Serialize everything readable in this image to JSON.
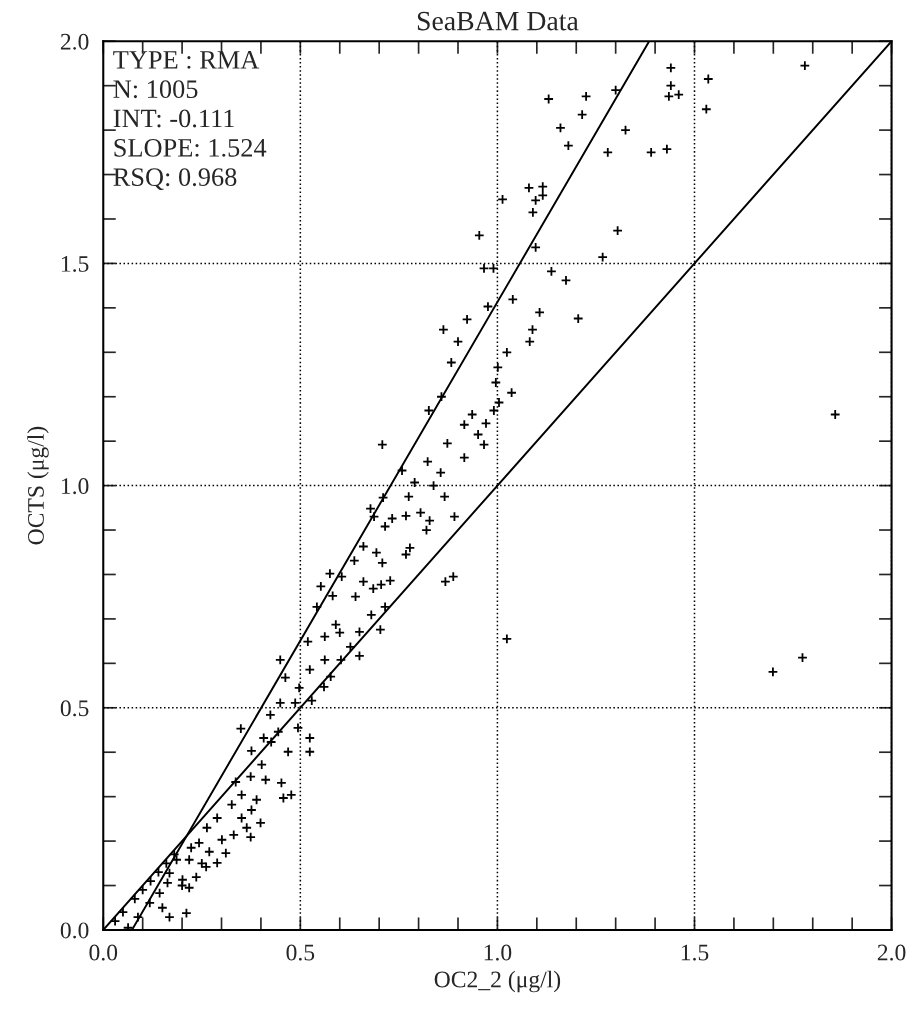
{
  "chart_data": {
    "type": "scatter",
    "title": "SeaBAM Data",
    "xlabel": "OC2_2 (μg/l)",
    "ylabel": "OCTS (μg/l)",
    "annotations": [
      "TYPE : RMA",
      "N: 1005",
      "INT: -0.111",
      "SLOPE: 1.524",
      "RSQ: 0.968"
    ],
    "xlim": [
      0,
      2
    ],
    "ylim": [
      0,
      2
    ],
    "xticks": [
      {
        "value": 0,
        "label": "0.0"
      },
      {
        "value": 0.1,
        "label": null
      },
      {
        "value": 0.2,
        "label": null
      },
      {
        "value": 0.3,
        "label": null
      },
      {
        "value": 0.4,
        "label": null
      },
      {
        "value": 0.5,
        "label": "0.5"
      },
      {
        "value": 0.6,
        "label": null
      },
      {
        "value": 0.7,
        "label": null
      },
      {
        "value": 0.8,
        "label": null
      },
      {
        "value": 0.9,
        "label": null
      },
      {
        "value": 1,
        "label": "1.0"
      },
      {
        "value": 1.1,
        "label": null
      },
      {
        "value": 1.2,
        "label": null
      },
      {
        "value": 1.3,
        "label": null
      },
      {
        "value": 1.4,
        "label": null
      },
      {
        "value": 1.5,
        "label": "1.5"
      },
      {
        "value": 1.6,
        "label": null
      },
      {
        "value": 1.7,
        "label": null
      },
      {
        "value": 1.8,
        "label": null
      },
      {
        "value": 1.9,
        "label": null
      },
      {
        "value": 2,
        "label": "2.0"
      }
    ],
    "yticks": [
      {
        "value": 0,
        "label": "0.0"
      },
      {
        "value": 0.1,
        "label": null
      },
      {
        "value": 0.2,
        "label": null
      },
      {
        "value": 0.3,
        "label": null
      },
      {
        "value": 0.4,
        "label": null
      },
      {
        "value": 0.5,
        "label": "0.5"
      },
      {
        "value": 0.6,
        "label": null
      },
      {
        "value": 0.7,
        "label": null
      },
      {
        "value": 0.8,
        "label": null
      },
      {
        "value": 0.9,
        "label": null
      },
      {
        "value": 1,
        "label": "1.0"
      },
      {
        "value": 1.1,
        "label": null
      },
      {
        "value": 1.2,
        "label": null
      },
      {
        "value": 1.3,
        "label": null
      },
      {
        "value": 1.4,
        "label": null
      },
      {
        "value": 1.5,
        "label": "1.5"
      },
      {
        "value": 1.6,
        "label": null
      },
      {
        "value": 1.7,
        "label": null
      },
      {
        "value": 1.8,
        "label": null
      },
      {
        "value": 1.9,
        "label": null
      },
      {
        "value": 2,
        "label": "2.0"
      }
    ],
    "grid": true,
    "legend": false,
    "series": [
      {
        "color": "#000000",
        "marker": "cross",
        "x": [
          1.13,
          1.225,
          1.3,
          1.215,
          1.16,
          1.18,
          1.325,
          1.28,
          1.39,
          1.43,
          1.44,
          1.44,
          1.435,
          1.46,
          1.535,
          1.53,
          1.78,
          1.08,
          1.115,
          1.097,
          1.115,
          1.09,
          1.013,
          0.954,
          1.305,
          1.267,
          0.99,
          0.966,
          1.137,
          1.174,
          1.097,
          0.976,
          1.039,
          0.923,
          1.107,
          1.205,
          0.863,
          1.089,
          0.9,
          1.082,
          1.024,
          0.883,
          1.001,
          0.996,
          1.036,
          0.858,
          1.004,
          0.936,
          0.826,
          0.991,
          0.916,
          0.971,
          0.951,
          0.873,
          0.966,
          1.857,
          0.708,
          0.916,
          0.823,
          0.856,
          0.758,
          0.79,
          0.838,
          0.71,
          0.775,
          0.866,
          0.678,
          0.687,
          0.733,
          0.768,
          0.805,
          0.828,
          0.891,
          0.82,
          0.715,
          0.778,
          0.768,
          0.693,
          0.708,
          0.66,
          0.637,
          0.728,
          0.705,
          0.685,
          0.66,
          0.715,
          0.68,
          0.64,
          0.605,
          0.575,
          0.552,
          0.582,
          0.542,
          0.59,
          0.6,
          0.65,
          0.627,
          0.562,
          0.519,
          0.562,
          0.603,
          0.65,
          0.524,
          0.577,
          0.56,
          0.497,
          0.529,
          0.449,
          0.462,
          0.487,
          0.449,
          0.424,
          0.444,
          0.494,
          0.407,
          0.426,
          0.349,
          0.469,
          0.524,
          0.524,
          0.376,
          0.402,
          0.374,
          0.412,
          0.336,
          0.452,
          0.477,
          0.457,
          0.351,
          0.389,
          0.326,
          0.376,
          0.351,
          0.289,
          0.399,
          0.364,
          0.331,
          0.374,
          0.263,
          0.301,
          0.243,
          0.223,
          0.269,
          0.311,
          0.289,
          0.261,
          0.218,
          0.186,
          0.168,
          0.236,
          0.201,
          0.163,
          0.143,
          0.218,
          0.118,
          0.088,
          0.063,
          0.211,
          0.168,
          0.703,
          0.868,
          0.888,
          1.024,
          1.699,
          1.774,
          0.03,
          0.05,
          0.08,
          0.1,
          0.12,
          0.14,
          0.16,
          0.18,
          0.15,
          0.2,
          0.25
        ],
        "values": [
          1.87,
          1.876,
          1.89,
          1.835,
          1.805,
          1.765,
          1.8,
          1.75,
          1.75,
          1.757,
          1.94,
          1.9,
          1.876,
          1.88,
          1.915,
          1.847,
          1.945,
          1.67,
          1.673,
          1.642,
          1.653,
          1.615,
          1.644,
          1.563,
          1.574,
          1.514,
          1.489,
          1.489,
          1.482,
          1.462,
          1.536,
          1.403,
          1.419,
          1.374,
          1.39,
          1.376,
          1.351,
          1.351,
          1.324,
          1.324,
          1.3,
          1.277,
          1.266,
          1.232,
          1.209,
          1.2,
          1.187,
          1.16,
          1.169,
          1.169,
          1.137,
          1.14,
          1.115,
          1.095,
          1.092,
          1.16,
          1.092,
          1.063,
          1.054,
          1.029,
          1.034,
          1.007,
          1.0,
          0.973,
          0.975,
          0.975,
          0.948,
          0.93,
          0.926,
          0.932,
          0.939,
          0.921,
          0.93,
          0.9,
          0.908,
          0.86,
          0.845,
          0.849,
          0.826,
          0.863,
          0.831,
          0.786,
          0.777,
          0.768,
          0.784,
          0.727,
          0.709,
          0.75,
          0.795,
          0.802,
          0.773,
          0.752,
          0.727,
          0.687,
          0.669,
          0.671,
          0.637,
          0.66,
          0.649,
          0.608,
          0.608,
          0.617,
          0.586,
          0.57,
          0.547,
          0.545,
          0.516,
          0.608,
          0.568,
          0.511,
          0.511,
          0.484,
          0.446,
          0.455,
          0.432,
          0.423,
          0.453,
          0.401,
          0.432,
          0.401,
          0.403,
          0.372,
          0.345,
          0.338,
          0.333,
          0.331,
          0.304,
          0.297,
          0.304,
          0.293,
          0.282,
          0.27,
          0.252,
          0.252,
          0.241,
          0.23,
          0.214,
          0.209,
          0.23,
          0.203,
          0.196,
          0.185,
          0.176,
          0.173,
          0.151,
          0.142,
          0.158,
          0.158,
          0.128,
          0.119,
          0.113,
          0.106,
          0.083,
          0.095,
          0.061,
          0.029,
          0.005,
          0.038,
          0.029,
          0.676,
          0.784,
          0.795,
          0.655,
          0.581,
          0.613,
          0.02,
          0.04,
          0.07,
          0.09,
          0.11,
          0.13,
          0.15,
          0.17,
          0.05,
          0.1,
          0.15
        ]
      },
      {
        "type": "line",
        "color": "#000000",
        "x": [
          0.0728,
          1.385
        ],
        "values": [
          0,
          2
        ],
        "line_style": "solid"
      },
      {
        "type": "line",
        "color": "#000000",
        "x": [
          0,
          2
        ],
        "values": [
          0,
          2
        ],
        "line_style": "solid"
      }
    ]
  }
}
